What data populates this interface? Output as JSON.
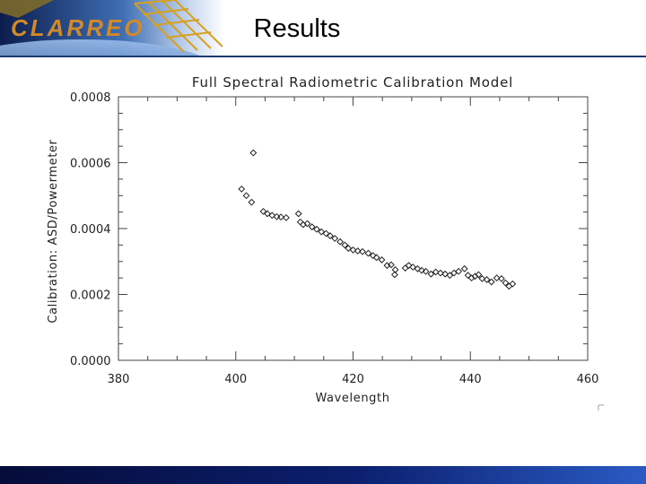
{
  "slide": {
    "title": "Results"
  },
  "logo": {
    "text": "CLARREO"
  },
  "chart_data": {
    "type": "scatter",
    "title": "Full Spectral Radiometric Calibration Model",
    "xlabel": "Wavelength",
    "ylabel": "Calibration: ASD/Powermeter",
    "xlim": [
      380,
      460
    ],
    "ylim": [
      0.0,
      0.0008
    ],
    "xticks": [
      "380",
      "400",
      "420",
      "440",
      "460"
    ],
    "yticks": [
      "0.0000",
      "0.0002",
      "0.0004",
      "0.0006",
      "0.0008"
    ],
    "marker": "diamond",
    "grid": false,
    "series": [
      {
        "x": [
          401.0,
          401.8,
          402.7,
          403.0,
          404.7,
          405.4,
          406.2,
          407.0,
          407.7,
          408.6,
          410.7,
          411.0,
          411.5,
          412.2,
          413.0,
          413.8,
          414.6,
          415.4,
          416.1,
          416.9,
          417.8,
          418.6,
          419.2,
          420.0,
          420.8,
          421.6,
          422.6,
          423.4,
          424.0,
          424.9,
          425.8,
          426.5,
          427.1,
          427.2,
          428.9,
          429.5,
          430.2,
          431.0,
          431.7,
          432.4,
          433.3,
          434.1,
          434.9,
          435.7,
          436.5,
          437.2,
          438.0,
          439.0,
          439.6,
          440.2,
          440.8,
          441.4,
          442.0,
          442.8,
          443.6,
          444.5,
          445.3,
          446.0,
          446.6,
          447.2
        ],
        "y": [
          0.00052,
          0.0005,
          0.00048,
          0.00063,
          0.000452,
          0.000445,
          0.00044,
          0.000436,
          0.000435,
          0.000433,
          0.000445,
          0.00042,
          0.000412,
          0.000415,
          0.000405,
          0.000398,
          0.00039,
          0.000385,
          0.000378,
          0.00037,
          0.00036,
          0.00035,
          0.00034,
          0.000335,
          0.000332,
          0.00033,
          0.000325,
          0.000318,
          0.000312,
          0.000305,
          0.000288,
          0.00029,
          0.00026,
          0.000275,
          0.00028,
          0.000288,
          0.000283,
          0.000278,
          0.000273,
          0.00027,
          0.000262,
          0.000268,
          0.000265,
          0.000262,
          0.000258,
          0.000265,
          0.00027,
          0.000278,
          0.000258,
          0.00025,
          0.000255,
          0.00026,
          0.000248,
          0.000245,
          0.000238,
          0.00025,
          0.000248,
          0.000235,
          0.000225,
          0.000232
        ]
      }
    ]
  }
}
